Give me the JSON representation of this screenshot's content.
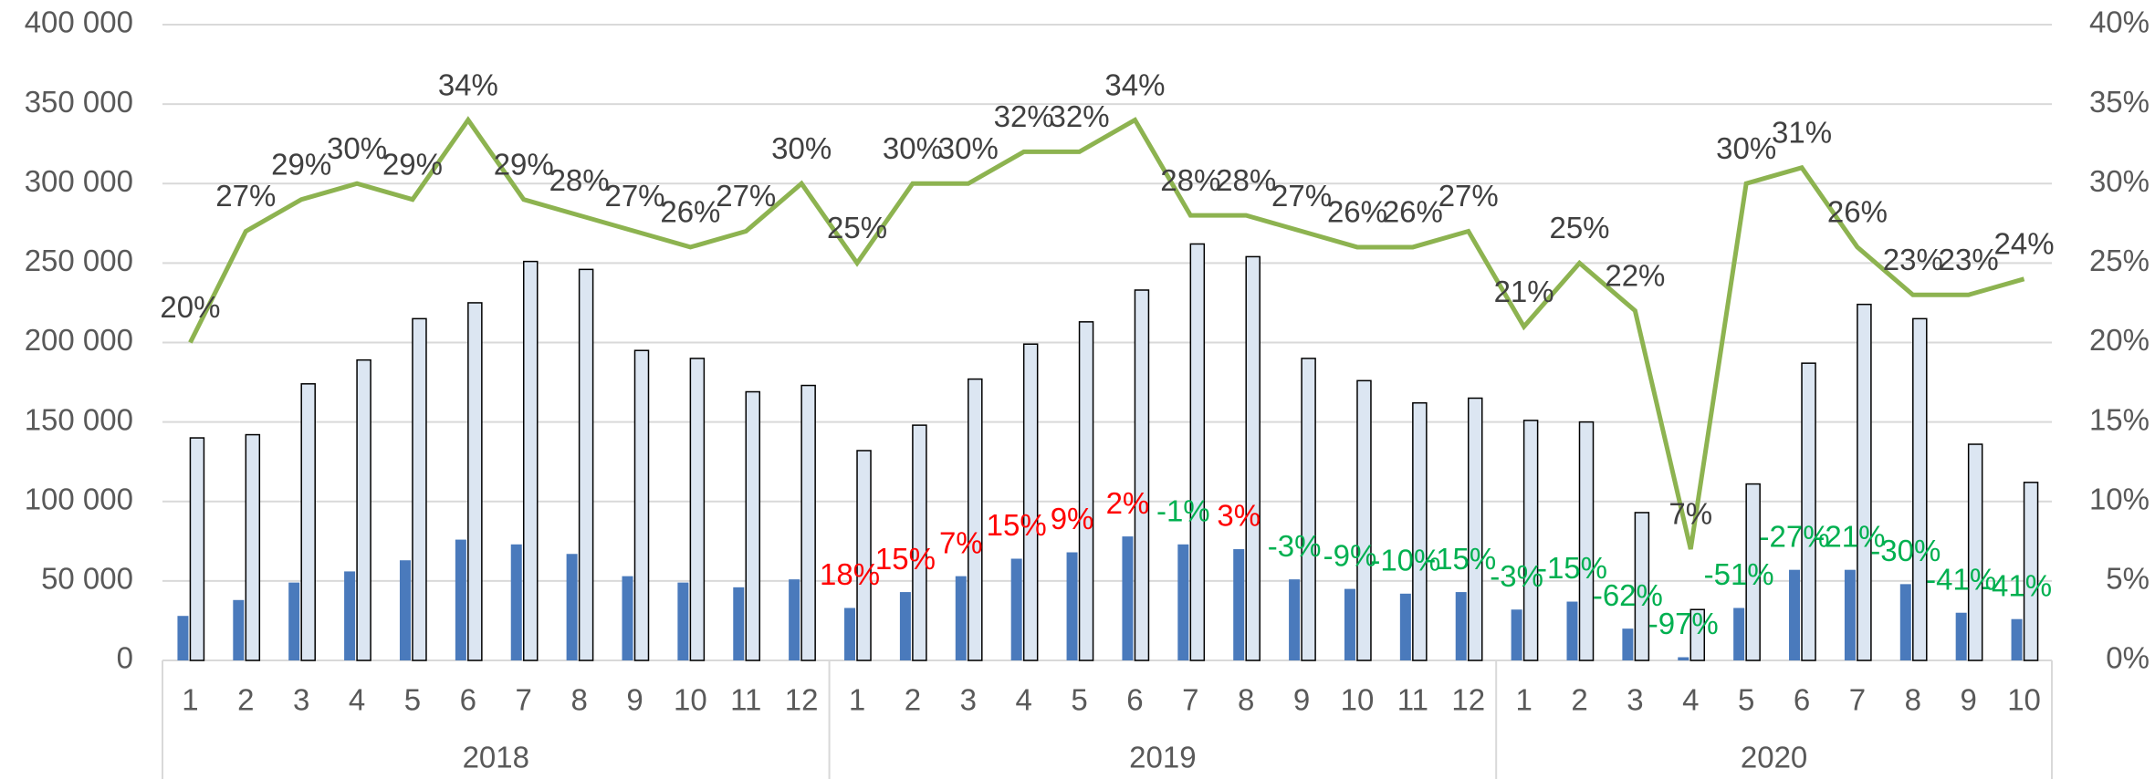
{
  "chart_data": {
    "type": "bar",
    "groups": [
      {
        "label": "2018",
        "categories": [
          "1",
          "2",
          "3",
          "4",
          "5",
          "6",
          "7",
          "8",
          "9",
          "10",
          "11",
          "12"
        ]
      },
      {
        "label": "2019",
        "categories": [
          "1",
          "2",
          "3",
          "4",
          "5",
          "6",
          "7",
          "8",
          "9",
          "10",
          "11",
          "12"
        ]
      },
      {
        "label": "2020",
        "categories": [
          "1",
          "2",
          "3",
          "4",
          "5",
          "6",
          "7",
          "8",
          "9",
          "10"
        ]
      }
    ],
    "series": [
      {
        "type": "bar",
        "color": "#4a7abc",
        "values": [
          28000,
          38000,
          49000,
          56000,
          63000,
          76000,
          73000,
          67000,
          53000,
          49000,
          46000,
          51000,
          33000,
          43000,
          53000,
          64000,
          68000,
          78000,
          73000,
          70000,
          51000,
          45000,
          42000,
          43000,
          32000,
          37000,
          20000,
          2000,
          33000,
          57000,
          57000,
          48000,
          30000,
          26000
        ]
      },
      {
        "type": "bar",
        "color": "#dce6f2",
        "values": [
          140000,
          142000,
          174000,
          189000,
          215000,
          225000,
          251000,
          246000,
          195000,
          190000,
          169000,
          173000,
          132000,
          148000,
          177000,
          199000,
          213000,
          233000,
          262000,
          254000,
          190000,
          176000,
          162000,
          165000,
          151000,
          150000,
          93000,
          32000,
          111000,
          187000,
          224000,
          215000,
          136000,
          112000
        ]
      },
      {
        "type": "line",
        "axis": "y2",
        "color": "#8db350",
        "values": [
          20,
          27,
          29,
          30,
          29,
          34,
          29,
          28,
          27,
          26,
          27,
          30,
          25,
          30,
          30,
          32,
          32,
          34,
          28,
          28,
          27,
          26,
          26,
          27,
          21,
          25,
          22,
          7,
          30,
          31,
          26,
          23,
          23,
          24
        ],
        "value_labels": [
          "20%",
          "27%",
          "29%",
          "30%",
          "29%",
          "34%",
          "29%",
          "28%",
          "27%",
          "26%",
          "27%",
          "30%",
          "25%",
          "30%",
          "30%",
          "32%",
          "32%",
          "34%",
          "28%",
          "28%",
          "27%",
          "26%",
          "26%",
          "27%",
          "21%",
          "25%",
          "22%",
          "7%",
          "30%",
          "31%",
          "26%",
          "23%",
          "23%",
          "24%"
        ]
      }
    ],
    "changes": {
      "positive_color": "#ff0000",
      "negative_color": "#00b050",
      "values": [
        null,
        null,
        null,
        null,
        null,
        null,
        null,
        null,
        null,
        null,
        null,
        null,
        18,
        15,
        7,
        15,
        9,
        2,
        -1,
        3,
        -3,
        -9,
        -10,
        -15,
        -3,
        -15,
        -62,
        -97,
        -51,
        -27,
        -21,
        -30,
        -41,
        -41
      ],
      "value_labels": [
        null,
        null,
        null,
        null,
        null,
        null,
        null,
        null,
        null,
        null,
        null,
        null,
        "18%",
        "15%",
        "7%",
        "15%",
        "9%",
        "2%",
        "-1%",
        "3%",
        "-3%",
        "-9%",
        "-10%",
        "-15%",
        "-3%",
        "-15%",
        "-62%",
        "-97%",
        "-51%",
        "-27%",
        "-21%",
        "-30%",
        "-41%",
        "-41%"
      ]
    },
    "ylim": [
      0,
      400000
    ],
    "yticks": [
      0,
      {
        "value": 50000,
        "label": "50 000"
      },
      {
        "value": 100000,
        "label": "100 000"
      },
      {
        "value": 150000,
        "label": "150 000"
      },
      {
        "value": 200000,
        "label": "200 000"
      },
      {
        "value": 250000,
        "label": "250 000"
      },
      {
        "value": 300000,
        "label": "300 000"
      },
      {
        "value": 350000,
        "label": "350 000"
      },
      {
        "value": 400000,
        "label": "400 000"
      }
    ],
    "y2lim": [
      0,
      40
    ],
    "y2ticks": [
      {
        "value": 0,
        "label": "0%"
      },
      {
        "value": 5,
        "label": "5%"
      },
      {
        "value": 10,
        "label": "10%"
      },
      {
        "value": 15,
        "label": "15%"
      },
      {
        "value": 20,
        "label": "20%"
      },
      {
        "value": 25,
        "label": "25%"
      },
      {
        "value": 30,
        "label": "30%"
      },
      {
        "value": 35,
        "label": "35%"
      },
      {
        "value": 40,
        "label": "40%"
      }
    ],
    "grid": true
  }
}
